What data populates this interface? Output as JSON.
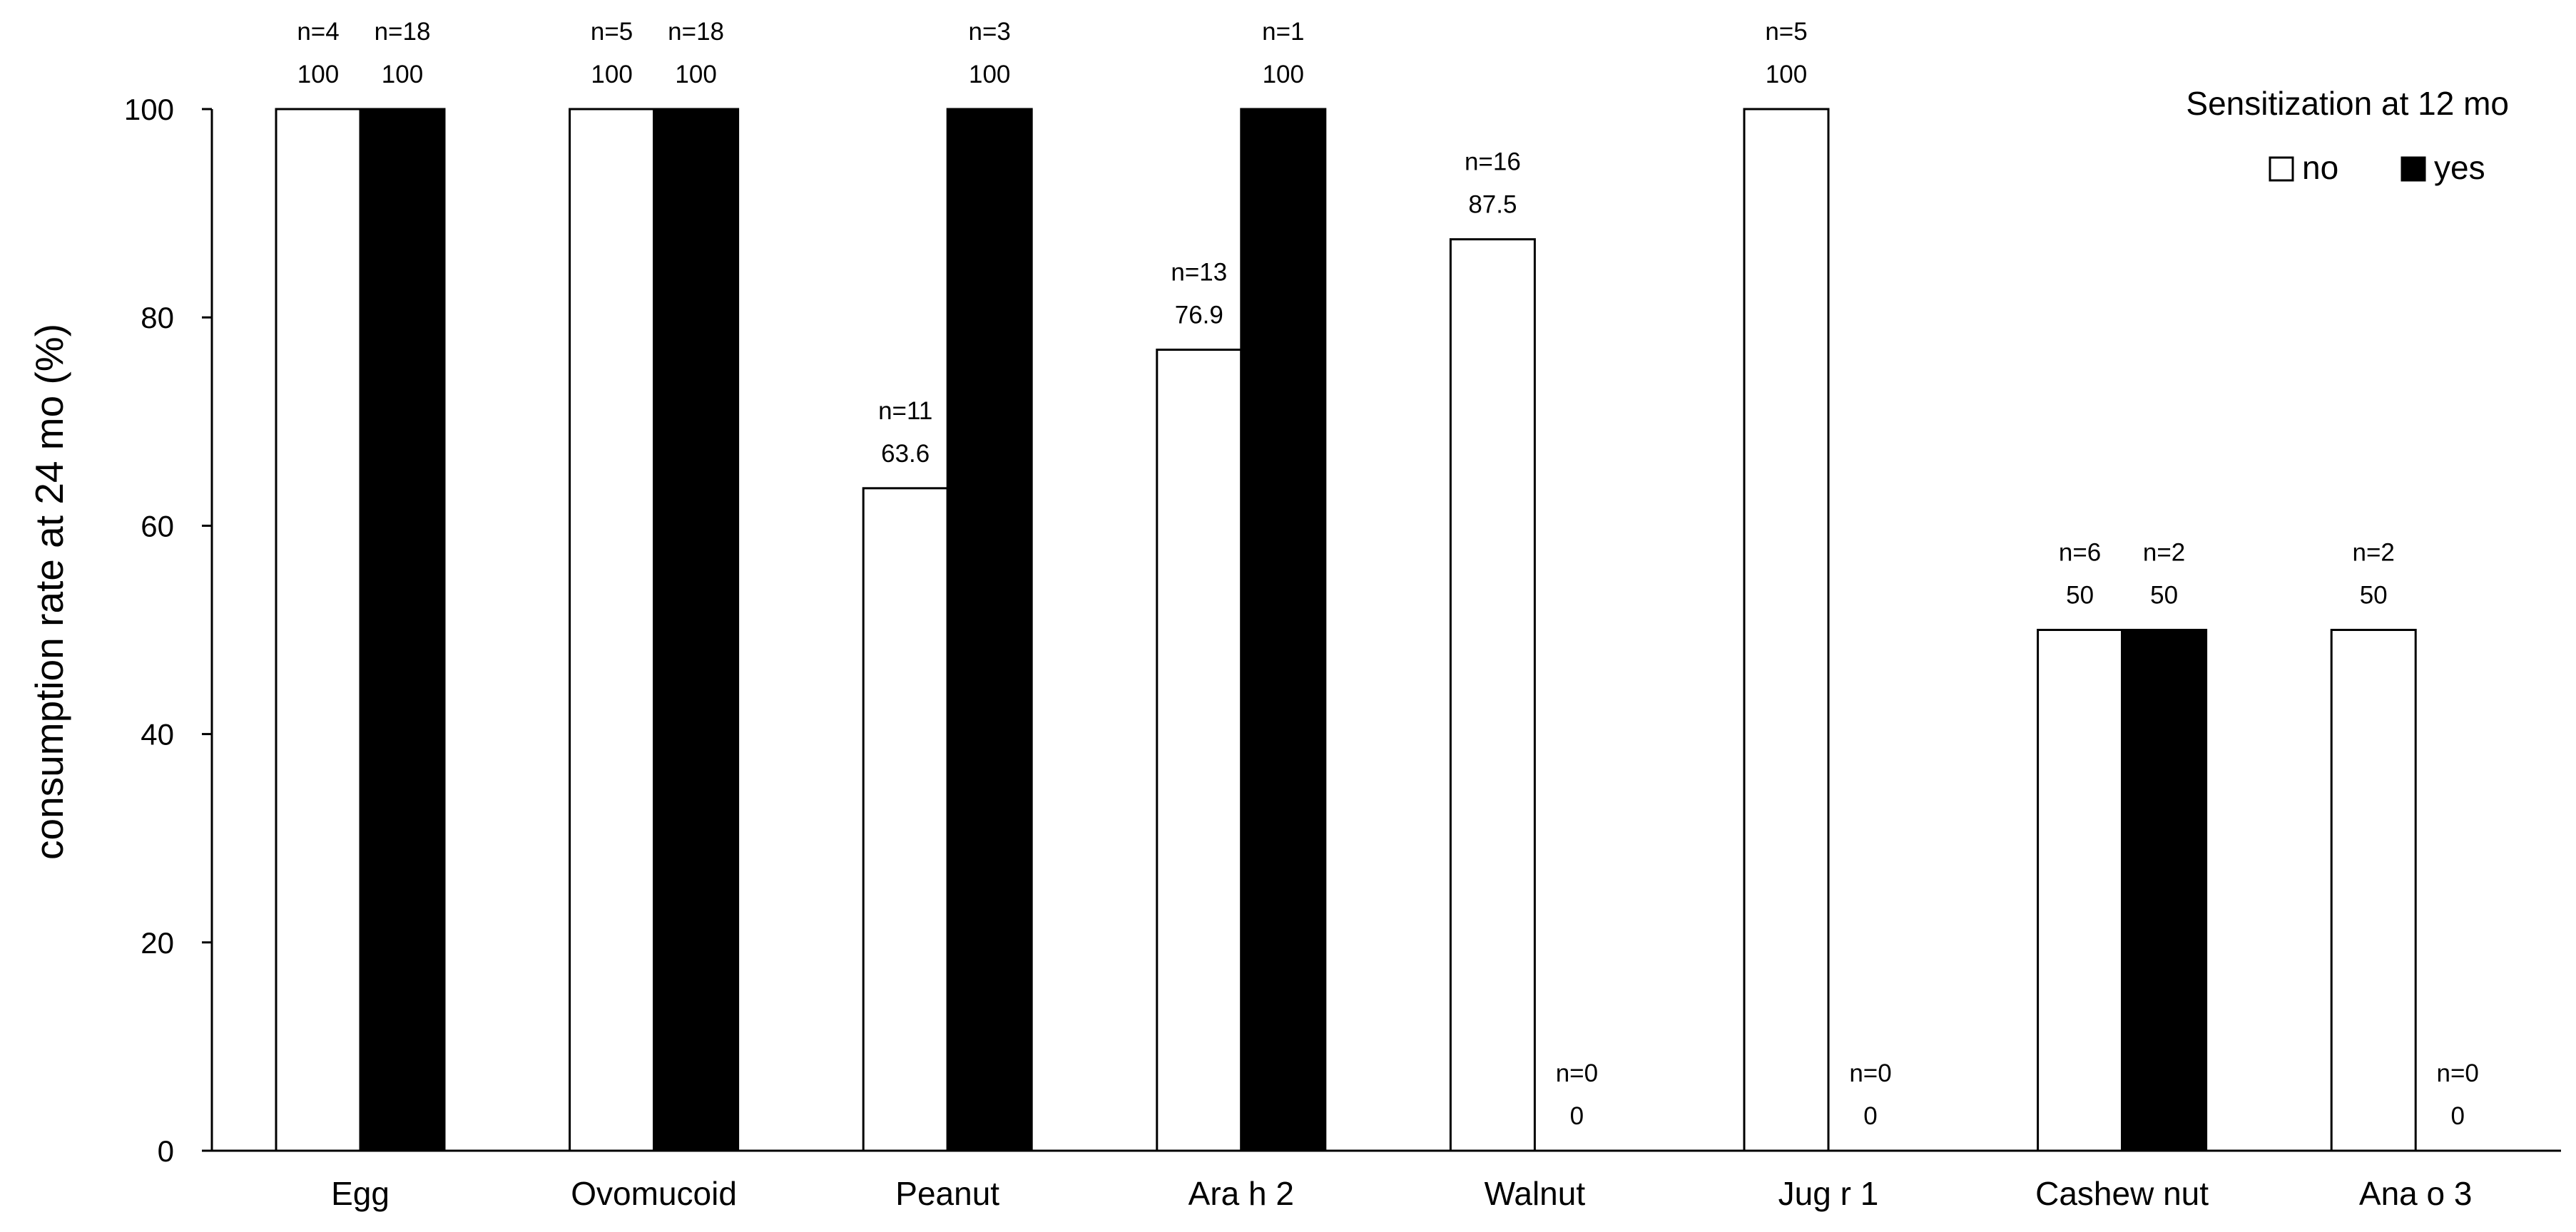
{
  "chart_data": {
    "type": "bar",
    "title": "",
    "xlabel": "",
    "ylabel": "consumption rate at 24 mo (%)",
    "ylim": [
      0,
      100
    ],
    "yticks": [
      0,
      20,
      40,
      60,
      80,
      100
    ],
    "grid": false,
    "legend": {
      "title": "Sensitization at 12 mo",
      "position": "top-right"
    },
    "categories": [
      "Egg",
      "Ovomucoid",
      "Peanut",
      "Ara h 2",
      "Walnut",
      "Jug r 1",
      "Cashew nut",
      "Ana o 3"
    ],
    "series": [
      {
        "name": "no",
        "color": "#ffffff",
        "values": [
          100,
          100,
          63.6,
          76.9,
          87.5,
          100,
          50,
          50
        ],
        "value_labels": [
          "100",
          "100",
          "63.6",
          "76.9",
          "87.5",
          "100",
          "50",
          "50"
        ],
        "n_labels": [
          "n=4",
          "n=5",
          "n=11",
          "n=13",
          "n=16",
          "n=5",
          "n=6",
          "n=2"
        ]
      },
      {
        "name": "yes",
        "color": "#000000",
        "values": [
          100,
          100,
          100,
          100,
          0,
          0,
          50,
          0
        ],
        "value_labels": [
          "100",
          "100",
          "100",
          "100",
          "0",
          "0",
          "50",
          "0"
        ],
        "n_labels": [
          "n=18",
          "n=18",
          "n=3",
          "n=1",
          "n=0",
          "n=0",
          "n=2",
          "n=0"
        ]
      }
    ]
  }
}
